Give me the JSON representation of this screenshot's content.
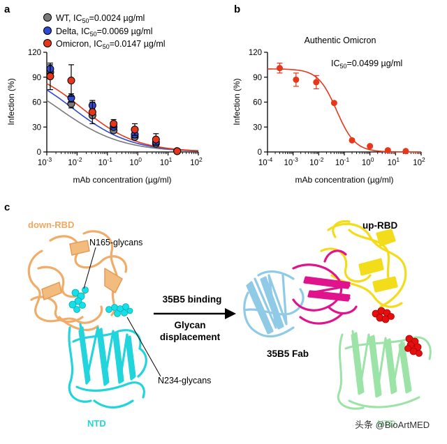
{
  "panel_labels": {
    "a": "a",
    "b": "b",
    "c": "c"
  },
  "colors": {
    "wt": "#7a7a7a",
    "delta": "#2f49d0",
    "omicron": "#e8361a",
    "down_rbd": "#f0a860",
    "ntd": "#22d4dc",
    "glycan": "#13e0e8",
    "fab": "#8fcbe6",
    "fab_heavy": "#e0128c",
    "up_rbd": "#f3dc1a",
    "ntd_right": "#9be3a6",
    "red_glycan": "#e60f0f"
  },
  "chart_data": [
    {
      "type": "scatter",
      "panel": "a",
      "title": "",
      "xlabel": "mAb concentration (µg/ml)",
      "ylabel": "Infection (%)",
      "xscale": "log",
      "xlim": [
        0.001,
        100
      ],
      "ylim": [
        0,
        120
      ],
      "yticks": [
        0,
        30,
        60,
        90,
        120
      ],
      "xticks": [
        {
          "v": 0.001,
          "base": "10",
          "exp": "-3"
        },
        {
          "v": 0.01,
          "base": "10",
          "exp": "-2"
        },
        {
          "v": 0.1,
          "base": "10",
          "exp": "-1"
        },
        {
          "v": 1,
          "base": "10",
          "exp": "0"
        },
        {
          "v": 10,
          "base": "10",
          "exp": "1"
        },
        {
          "v": 100,
          "base": "10",
          "exp": "2"
        }
      ],
      "legend_position": "top-left",
      "series": [
        {
          "name": "WT",
          "legend_prefix": "WT, IC",
          "legend_sub": "50",
          "legend_suffix": "=0.0024 µg/ml",
          "color": "#7a7a7a",
          "ic50": 0.0024,
          "x": [
            0.0013,
            0.0064,
            0.032,
            0.16,
            0.8,
            4.0,
            20.0
          ],
          "y": [
            96,
            58,
            44,
            26,
            18,
            10,
            1
          ],
          "err": [
            4,
            5,
            3,
            3,
            3,
            3,
            1
          ]
        },
        {
          "name": "Delta",
          "legend_prefix": "Delta, IC",
          "legend_sub": "50",
          "legend_suffix": "=0.0069 µg/ml",
          "color": "#2f49d0",
          "ic50": 0.0069,
          "x": [
            0.0013,
            0.0064,
            0.032,
            0.16,
            0.8,
            4.0,
            20.0
          ],
          "y": [
            100,
            65,
            56,
            30,
            21,
            12,
            1
          ],
          "err": [
            5,
            5,
            4,
            3,
            4,
            3,
            1
          ]
        },
        {
          "name": "Omicron",
          "legend_prefix": "Omicron, IC",
          "legend_sub": "50",
          "legend_suffix": "=0.0147 µg/ml",
          "color": "#e8361a",
          "ic50": 0.0147,
          "x": [
            0.0013,
            0.0064,
            0.032,
            0.16,
            0.8,
            4.0,
            20.0
          ],
          "y": [
            91,
            86,
            48,
            34,
            27,
            15,
            1
          ],
          "err": [
            16,
            19,
            14,
            5,
            7,
            7,
            1
          ]
        }
      ],
      "fit_curves": [
        {
          "name": "WT",
          "color": "#7a7a7a",
          "top": 105,
          "ic50": 0.0024,
          "hill": 0.42
        },
        {
          "name": "Delta",
          "color": "#2f49d0",
          "top": 106,
          "ic50": 0.0069,
          "hill": 0.45
        },
        {
          "name": "Omicron",
          "color": "#e8361a",
          "top": 105,
          "ic50": 0.0147,
          "hill": 0.48
        }
      ]
    },
    {
      "type": "scatter",
      "panel": "b",
      "title": "Authentic Omicron",
      "annotation_prefix": "IC",
      "annotation_sub": "50",
      "annotation_suffix": "=0.0499 µg/ml",
      "xlabel": "mAb concentration (µg/ml)",
      "ylabel": "Infection (%)",
      "xscale": "log",
      "xlim": [
        0.0001,
        100
      ],
      "ylim": [
        0,
        120
      ],
      "yticks": [
        0,
        30,
        60,
        90,
        120
      ],
      "xticks": [
        {
          "v": 0.0001,
          "base": "10",
          "exp": "-4"
        },
        {
          "v": 0.001,
          "base": "10",
          "exp": "-3"
        },
        {
          "v": 0.01,
          "base": "10",
          "exp": "-2"
        },
        {
          "v": 0.1,
          "base": "10",
          "exp": "-1"
        },
        {
          "v": 1,
          "base": "10",
          "exp": "0"
        },
        {
          "v": 10,
          "base": "10",
          "exp": "1"
        },
        {
          "v": 100,
          "base": "10",
          "exp": "2"
        }
      ],
      "series": [
        {
          "name": "Authentic Omicron",
          "color": "#e8361a",
          "ic50": 0.0499,
          "x": [
            0.0003,
            0.0013,
            0.008,
            0.04,
            0.2,
            1.0,
            5.0,
            25.0
          ],
          "y": [
            101,
            87,
            84,
            59,
            14,
            7,
            2,
            1
          ],
          "err": [
            6,
            8,
            8,
            0,
            0,
            0,
            0,
            0
          ]
        }
      ],
      "fit_curves": [
        {
          "name": "Authentic Omicron",
          "color": "#e8361a",
          "top": 100,
          "ic50": 0.0499,
          "hill": 1.2
        }
      ]
    }
  ],
  "diagram": {
    "down_rbd_label": "down-RBD",
    "n165_label": "N165-glycans",
    "n234_label": "N234-glycans",
    "ntd_label": "NTD",
    "arrow_top_label": "35B5 binding",
    "arrow_bottom_label_1": "Glycan",
    "arrow_bottom_label_2": "displacement",
    "up_rbd_label": "up-RBD",
    "fab_label": "35B5 Fab",
    "ntd_right_label": "NTD"
  },
  "watermark": "头条 @BioArtMED"
}
